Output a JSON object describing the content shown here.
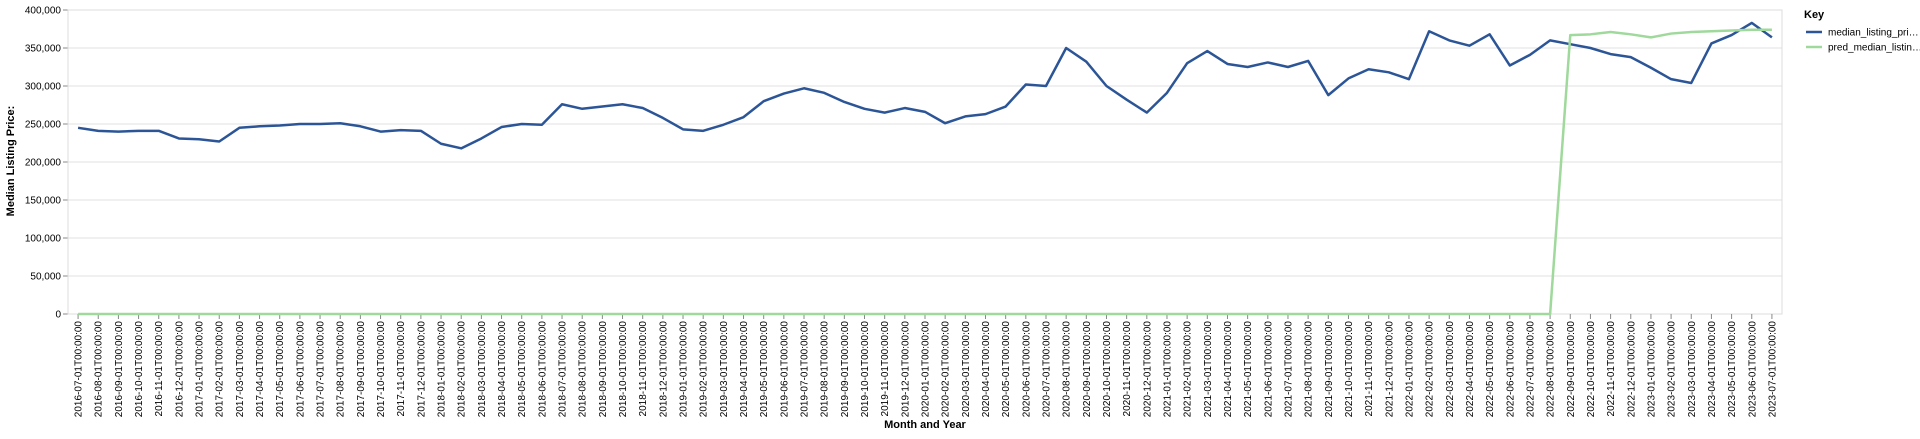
{
  "chart_data": {
    "type": "line",
    "y_label": "Median Listing Price:",
    "x_label": "Month and Year",
    "legend_title": "Key",
    "legend": "right",
    "grid": true,
    "categories": [
      "2016-07-01T00:00:00",
      "2016-08-01T00:00:00",
      "2016-09-01T00:00:00",
      "2016-10-01T00:00:00",
      "2016-11-01T00:00:00",
      "2016-12-01T00:00:00",
      "2017-01-01T00:00:00",
      "2017-02-01T00:00:00",
      "2017-03-01T00:00:00",
      "2017-04-01T00:00:00",
      "2017-05-01T00:00:00",
      "2017-06-01T00:00:00",
      "2017-07-01T00:00:00",
      "2017-08-01T00:00:00",
      "2017-09-01T00:00:00",
      "2017-10-01T00:00:00",
      "2017-11-01T00:00:00",
      "2017-12-01T00:00:00",
      "2018-01-01T00:00:00",
      "2018-02-01T00:00:00",
      "2018-03-01T00:00:00",
      "2018-04-01T00:00:00",
      "2018-05-01T00:00:00",
      "2018-06-01T00:00:00",
      "2018-07-01T00:00:00",
      "2018-08-01T00:00:00",
      "2018-09-01T00:00:00",
      "2018-10-01T00:00:00",
      "2018-11-01T00:00:00",
      "2018-12-01T00:00:00",
      "2019-01-01T00:00:00",
      "2019-02-01T00:00:00",
      "2019-03-01T00:00:00",
      "2019-04-01T00:00:00",
      "2019-05-01T00:00:00",
      "2019-06-01T00:00:00",
      "2019-07-01T00:00:00",
      "2019-08-01T00:00:00",
      "2019-09-01T00:00:00",
      "2019-10-01T00:00:00",
      "2019-11-01T00:00:00",
      "2019-12-01T00:00:00",
      "2020-01-01T00:00:00",
      "2020-02-01T00:00:00",
      "2020-03-01T00:00:00",
      "2020-04-01T00:00:00",
      "2020-05-01T00:00:00",
      "2020-06-01T00:00:00",
      "2020-07-01T00:00:00",
      "2020-08-01T00:00:00",
      "2020-09-01T00:00:00",
      "2020-10-01T00:00:00",
      "2020-11-01T00:00:00",
      "2020-12-01T00:00:00",
      "2021-01-01T00:00:00",
      "2021-02-01T00:00:00",
      "2021-03-01T00:00:00",
      "2021-04-01T00:00:00",
      "2021-05-01T00:00:00",
      "2021-06-01T00:00:00",
      "2021-07-01T00:00:00",
      "2021-08-01T00:00:00",
      "2021-09-01T00:00:00",
      "2021-10-01T00:00:00",
      "2021-11-01T00:00:00",
      "2021-12-01T00:00:00",
      "2022-01-01T00:00:00",
      "2022-02-01T00:00:00",
      "2022-03-01T00:00:00",
      "2022-04-01T00:00:00",
      "2022-05-01T00:00:00",
      "2022-06-01T00:00:00",
      "2022-07-01T00:00:00",
      "2022-08-01T00:00:00",
      "2022-09-01T00:00:00",
      "2022-10-01T00:00:00",
      "2022-11-01T00:00:00",
      "2022-12-01T00:00:00",
      "2023-01-01T00:00:00",
      "2023-02-01T00:00:00",
      "2023-03-01T00:00:00",
      "2023-04-01T00:00:00",
      "2023-05-01T00:00:00",
      "2023-06-01T00:00:00",
      "2023-07-01T00:00:00"
    ],
    "series": [
      {
        "name": "median_listing_pri…",
        "color": "#2c5597",
        "values": [
          245000,
          241000,
          240000,
          241000,
          241000,
          231000,
          230000,
          227000,
          245000,
          247000,
          248000,
          250000,
          250000,
          251000,
          247000,
          240000,
          242000,
          241000,
          224000,
          218000,
          231000,
          246000,
          250000,
          249000,
          276000,
          270000,
          273000,
          276000,
          271000,
          258000,
          243000,
          241000,
          249000,
          259000,
          280000,
          290000,
          297000,
          291000,
          279000,
          270000,
          265000,
          271000,
          266000,
          251000,
          260000,
          263000,
          273000,
          302000,
          300000,
          350000,
          332000,
          300000,
          282000,
          265000,
          291000,
          330000,
          346000,
          329000,
          325000,
          331000,
          325000,
          333000,
          288000,
          310000,
          322000,
          318000,
          309000,
          372000,
          360000,
          353000,
          368000,
          327000,
          341000,
          360000,
          355000,
          350000,
          342000,
          338000,
          324000,
          309000,
          304000,
          356000,
          367000,
          383000,
          364000
        ]
      },
      {
        "name": "pred_median_listin…",
        "color": "#9fd99b",
        "values": [
          0,
          0,
          0,
          0,
          0,
          0,
          0,
          0,
          0,
          0,
          0,
          0,
          0,
          0,
          0,
          0,
          0,
          0,
          0,
          0,
          0,
          0,
          0,
          0,
          0,
          0,
          0,
          0,
          0,
          0,
          0,
          0,
          0,
          0,
          0,
          0,
          0,
          0,
          0,
          0,
          0,
          0,
          0,
          0,
          0,
          0,
          0,
          0,
          0,
          0,
          0,
          0,
          0,
          0,
          0,
          0,
          0,
          0,
          0,
          0,
          0,
          0,
          0,
          0,
          0,
          0,
          0,
          0,
          0,
          0,
          0,
          0,
          0,
          0,
          367000,
          368000,
          371000,
          368000,
          364000,
          369000,
          371000,
          372000,
          373000,
          374000,
          374000
        ]
      }
    ],
    "ylim": [
      0,
      400000
    ],
    "yticks": [
      0,
      {
        "value": 50000,
        "label": "50,000"
      },
      {
        "value": 100000,
        "label": "100,000"
      },
      {
        "value": 150000,
        "label": "150,000"
      },
      {
        "value": 200000,
        "label": "200,000"
      },
      {
        "value": 250000,
        "label": "250,000"
      },
      {
        "value": 300000,
        "label": "300,000"
      },
      {
        "value": 350000,
        "label": "350,000"
      },
      {
        "value": 400000,
        "label": "400,000"
      }
    ]
  }
}
